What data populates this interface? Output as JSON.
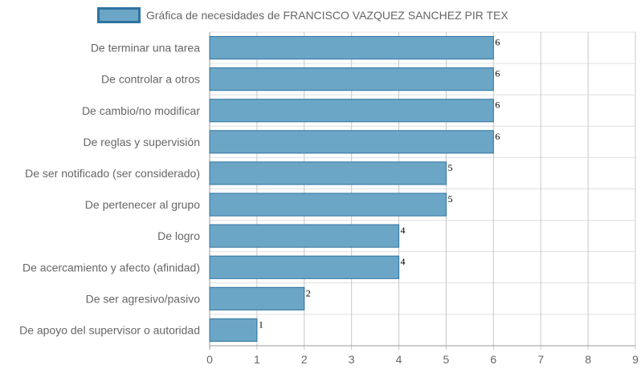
{
  "chart_data": {
    "type": "bar",
    "orientation": "horizontal",
    "categories": [
      "De terminar una tarea",
      "De controlar a otros",
      "De cambio/no modificar",
      "De reglas y supervisión",
      "De ser notificado (ser considerado)",
      "De pertenecer al grupo",
      "De logro",
      "De acercamiento y afecto (afinidad)",
      "De ser agresivo/pasivo",
      "De apoyo del supervisor o autoridad"
    ],
    "series": [
      {
        "name": "Gráfica de necesidades de FRANCISCO VAZQUEZ SANCHEZ PIR TEX",
        "values": [
          6,
          6,
          6,
          6,
          5,
          5,
          4,
          4,
          2,
          1
        ],
        "color": "#6ca6c6",
        "border_color": "#2e73a0"
      }
    ],
    "data_labels": [
      "6",
      "6",
      "6",
      "6",
      "5",
      "5",
      "4",
      "4",
      "2",
      "1"
    ],
    "xlim": [
      0,
      9
    ],
    "x_ticks": [
      "0",
      "1",
      "2",
      "3",
      "4",
      "5",
      "6",
      "7",
      "8",
      "9"
    ],
    "grid": true,
    "legend_position": "top-center",
    "xlabel": "",
    "ylabel": ""
  }
}
